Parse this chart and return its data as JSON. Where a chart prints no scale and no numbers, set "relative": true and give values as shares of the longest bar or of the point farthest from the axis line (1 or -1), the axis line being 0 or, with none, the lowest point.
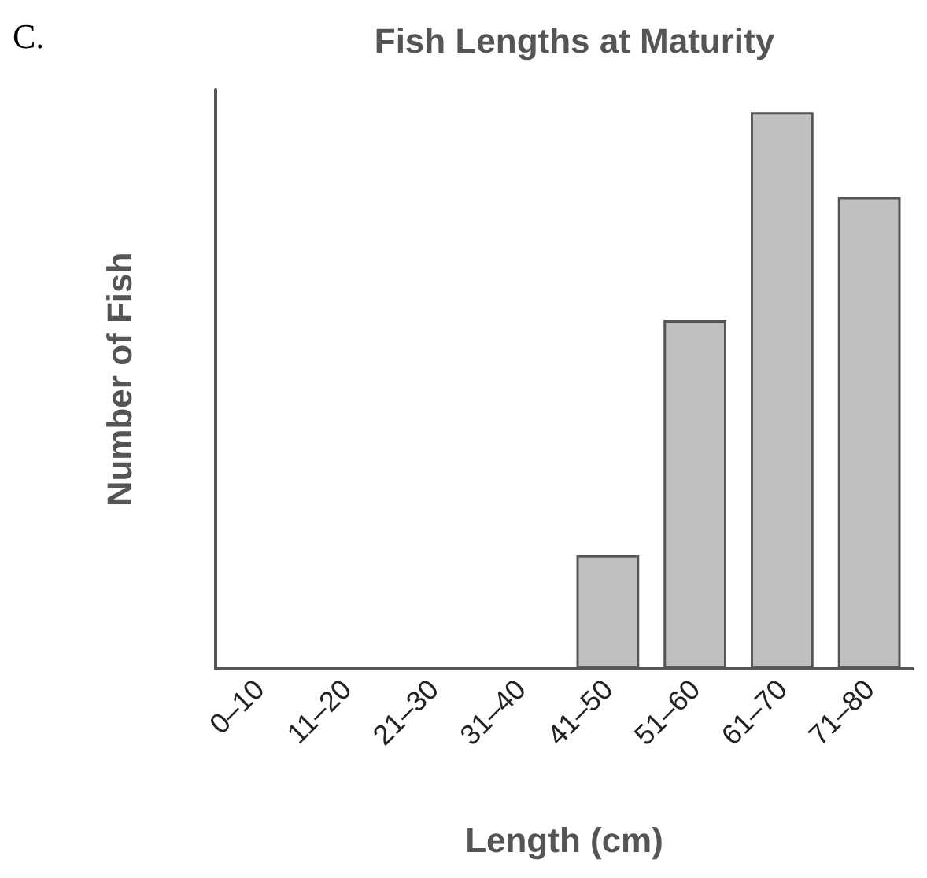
{
  "chart_data": {
    "type": "bar",
    "title": "Fish Lengths at Maturity",
    "xlabel": "Length (cm)",
    "ylabel": "Number of Fish",
    "annotations": [
      "C."
    ],
    "categories": [
      "0–10",
      "11–20",
      "21–30",
      "31–40",
      "41–50",
      "51–60",
      "61–70",
      "71–80"
    ],
    "values": [
      0,
      0,
      0,
      0,
      0.204,
      0.626,
      1,
      0.847
    ],
    "color": "#c0c0c0",
    "relative": true,
    "grid": false
  }
}
